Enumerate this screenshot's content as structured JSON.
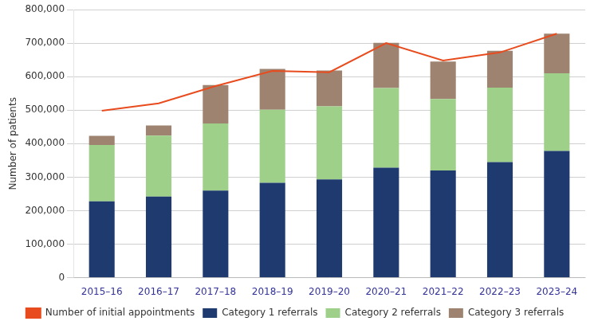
{
  "chart_data": {
    "type": "bar",
    "stacked": true,
    "categories": [
      "2015–16",
      "2016–17",
      "2017–18",
      "2018–19",
      "2019–20",
      "2020–21",
      "2021–22",
      "2022–23",
      "2023–24"
    ],
    "series": [
      {
        "name": "Category 1 referrals",
        "color": "#1f3a6e",
        "values": [
          228000,
          242000,
          260000,
          283000,
          293000,
          328000,
          320000,
          345000,
          378000
        ]
      },
      {
        "name": "Category 2 referrals",
        "color": "#9fd08a",
        "values": [
          168000,
          182000,
          200000,
          218000,
          218000,
          238000,
          213000,
          222000,
          232000
        ]
      },
      {
        "name": "Category 3 referrals",
        "color": "#9e8470",
        "values": [
          27000,
          30000,
          115000,
          122000,
          107000,
          135000,
          112000,
          110000,
          118000
        ]
      },
      {
        "name": "Number of initial appointments",
        "type": "line",
        "color": "#e84c1e",
        "values": [
          498000,
          520000,
          572000,
          617000,
          613000,
          700000,
          648000,
          672000,
          728000
        ]
      }
    ],
    "ylabel": "Number of patients",
    "ylim": [
      0,
      800000
    ],
    "yticks": [
      0,
      {
        "value": 100000,
        "label": "100,000"
      },
      {
        "value": 200000,
        "label": "200,000"
      },
      {
        "value": 300000,
        "label": "300,000"
      },
      {
        "value": 400000,
        "label": "400,000"
      },
      {
        "value": 500000,
        "label": "500,000"
      },
      {
        "value": 600000,
        "label": "600,000"
      },
      {
        "value": 700000,
        "label": "700,000"
      },
      {
        "value": 800000,
        "label": "800,000"
      }
    ],
    "grid": "y",
    "legend": "bottom"
  }
}
